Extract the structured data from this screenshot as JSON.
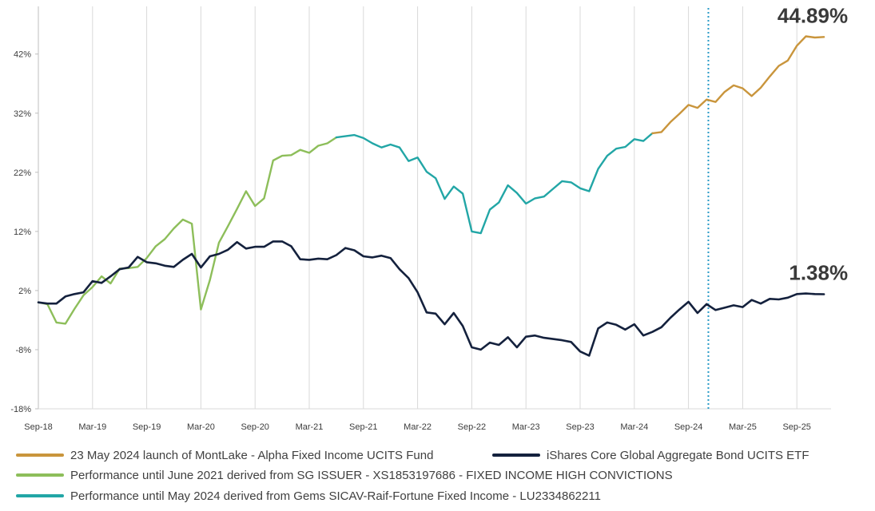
{
  "chart_data": {
    "type": "line",
    "title": "",
    "xlabel": "",
    "ylabel": "",
    "ylim": [
      -18,
      50
    ],
    "yticks": [
      -18,
      -8,
      2,
      12,
      22,
      32,
      42
    ],
    "ytick_labels": [
      "-18%",
      "-8%",
      "2%",
      "12%",
      "22%",
      "32%",
      "42%"
    ],
    "x_tick_labels": [
      "Sep-18",
      "Mar-19",
      "Sep-19",
      "Mar-20",
      "Sep-20",
      "Mar-21",
      "Sep-21",
      "Mar-22",
      "Sep-22",
      "Mar-23",
      "Sep-23",
      "Mar-24",
      "Sep-24",
      "Mar-25",
      "Sep-25"
    ],
    "x_tick_months": [
      0,
      6,
      12,
      18,
      24,
      30,
      36,
      42,
      48,
      54,
      60,
      66,
      72,
      78,
      84
    ],
    "x_range_months": [
      0,
      90
    ],
    "x_origin_label": "Sep-18",
    "grid": "vertical",
    "legend_position": "bottom",
    "vline": {
      "month": 74.2,
      "label": "",
      "color": "#2a9bc7",
      "style": "dotted"
    },
    "series": [
      {
        "name": "Performance until June 2021 derived from SG ISSUER - XS1853197686 - FIXED INCOME HIGH CONVICTIONS",
        "color": "#8dbe5a",
        "points": [
          [
            0,
            0
          ],
          [
            1,
            -0.3
          ],
          [
            2,
            -3.4
          ],
          [
            3,
            -3.6
          ],
          [
            4,
            -1.1
          ],
          [
            5,
            1.2
          ],
          [
            6,
            2.6
          ],
          [
            7,
            4.4
          ],
          [
            8,
            3.2
          ],
          [
            9,
            5.7
          ],
          [
            10,
            5.8
          ],
          [
            11,
            6
          ],
          [
            12,
            7.5
          ],
          [
            13,
            9.5
          ],
          [
            14,
            10.7
          ],
          [
            15,
            12.5
          ],
          [
            16,
            14
          ],
          [
            17,
            13.3
          ],
          [
            18,
            -1.2
          ],
          [
            19,
            3.8
          ],
          [
            20,
            10.1
          ],
          [
            21,
            12.9
          ],
          [
            22,
            15.8
          ],
          [
            23,
            18.8
          ],
          [
            24,
            16.3
          ],
          [
            25,
            17.6
          ],
          [
            26,
            24
          ],
          [
            27,
            24.8
          ],
          [
            28,
            24.9
          ],
          [
            29,
            25.8
          ],
          [
            30,
            25.3
          ],
          [
            31,
            26.5
          ],
          [
            32,
            26.9
          ],
          [
            33,
            27.9
          ]
        ]
      },
      {
        "name": "Performance until May 2024 derived from Gems SICAV-Raif-Fortune Fixed Income - LU2334862211",
        "color": "#22a6a6",
        "points": [
          [
            33,
            27.9
          ],
          [
            34,
            28.1
          ],
          [
            35,
            28.3
          ],
          [
            36,
            27.8
          ],
          [
            37,
            26.9
          ],
          [
            38,
            26.2
          ],
          [
            39,
            26.7
          ],
          [
            40,
            26.2
          ],
          [
            41,
            23.9
          ],
          [
            42,
            24.5
          ],
          [
            43,
            22.1
          ],
          [
            44,
            21
          ],
          [
            45,
            17.5
          ],
          [
            46,
            19.6
          ],
          [
            47,
            18.4
          ],
          [
            48,
            12
          ],
          [
            49,
            11.7
          ],
          [
            50,
            15.7
          ],
          [
            51,
            16.9
          ],
          [
            52,
            19.8
          ],
          [
            53,
            18.5
          ],
          [
            54,
            16.7
          ],
          [
            55,
            17.6
          ],
          [
            56,
            17.9
          ],
          [
            57,
            19.2
          ],
          [
            58,
            20.5
          ],
          [
            59,
            20.3
          ],
          [
            60,
            19.3
          ],
          [
            61,
            18.8
          ],
          [
            62,
            22.6
          ],
          [
            63,
            24.8
          ],
          [
            64,
            26
          ],
          [
            65,
            26.3
          ],
          [
            66,
            27.6
          ],
          [
            67,
            27.3
          ],
          [
            68,
            28.6
          ]
        ]
      },
      {
        "name": "23 May 2024 launch of MontLake - Alpha Fixed Income UCITS Fund",
        "color": "#c9953c",
        "points": [
          [
            68,
            28.6
          ],
          [
            69,
            28.8
          ],
          [
            70,
            30.5
          ],
          [
            71,
            31.9
          ],
          [
            72,
            33.4
          ],
          [
            73,
            32.9
          ],
          [
            74,
            34.3
          ],
          [
            75,
            33.9
          ],
          [
            76,
            35.6
          ],
          [
            77,
            36.7
          ],
          [
            78,
            36.2
          ],
          [
            79,
            34.9
          ],
          [
            80,
            36.3
          ],
          [
            81,
            38.2
          ],
          [
            82,
            40
          ],
          [
            83,
            40.9
          ],
          [
            84,
            43.4
          ],
          [
            85,
            45
          ],
          [
            86,
            44.8
          ],
          [
            87,
            44.89
          ]
        ]
      },
      {
        "name": "iShares Core Global Aggregate Bond UCITS ETF",
        "color": "#14213d",
        "points": [
          [
            0,
            0
          ],
          [
            1,
            -0.2
          ],
          [
            2,
            -0.2
          ],
          [
            3,
            1
          ],
          [
            4,
            1.4
          ],
          [
            5,
            1.7
          ],
          [
            6,
            3.6
          ],
          [
            7,
            3.3
          ],
          [
            8,
            4.4
          ],
          [
            9,
            5.6
          ],
          [
            10,
            5.9
          ],
          [
            11,
            7.7
          ],
          [
            12,
            6.8
          ],
          [
            13,
            6.6
          ],
          [
            14,
            6.2
          ],
          [
            15,
            6
          ],
          [
            16,
            7.2
          ],
          [
            17,
            8.2
          ],
          [
            18,
            5.9
          ],
          [
            19,
            7.8
          ],
          [
            20,
            8.2
          ],
          [
            21,
            8.9
          ],
          [
            22,
            10.2
          ],
          [
            23,
            9.1
          ],
          [
            24,
            9.4
          ],
          [
            25,
            9.4
          ],
          [
            26,
            10.3
          ],
          [
            27,
            10.3
          ],
          [
            28,
            9.5
          ],
          [
            29,
            7.3
          ],
          [
            30,
            7.2
          ],
          [
            31,
            7.4
          ],
          [
            32,
            7.3
          ],
          [
            33,
            8
          ],
          [
            34,
            9.2
          ],
          [
            35,
            8.8
          ],
          [
            36,
            7.8
          ],
          [
            37,
            7.6
          ],
          [
            38,
            7.9
          ],
          [
            39,
            7.5
          ],
          [
            40,
            5.6
          ],
          [
            41,
            4.1
          ],
          [
            42,
            1.7
          ],
          [
            43,
            -1.7
          ],
          [
            44,
            -1.9
          ],
          [
            45,
            -3.7
          ],
          [
            46,
            -1.8
          ],
          [
            47,
            -4
          ],
          [
            48,
            -7.6
          ],
          [
            49,
            -8
          ],
          [
            50,
            -6.8
          ],
          [
            51,
            -7.2
          ],
          [
            52,
            -5.9
          ],
          [
            53,
            -7.6
          ],
          [
            54,
            -5.8
          ],
          [
            55,
            -5.6
          ],
          [
            56,
            -6
          ],
          [
            57,
            -6.2
          ],
          [
            58,
            -6.4
          ],
          [
            59,
            -6.7
          ],
          [
            60,
            -8.3
          ],
          [
            61,
            -9
          ],
          [
            62,
            -4.4
          ],
          [
            63,
            -3.4
          ],
          [
            64,
            -3.8
          ],
          [
            65,
            -4.6
          ],
          [
            66,
            -3.7
          ],
          [
            67,
            -5.6
          ],
          [
            68,
            -5
          ],
          [
            69,
            -4.2
          ],
          [
            70,
            -2.6
          ],
          [
            71,
            -1.2
          ],
          [
            72,
            0.1
          ],
          [
            73,
            -1.8
          ],
          [
            74,
            -0.3
          ],
          [
            75,
            -1.3
          ],
          [
            76,
            -0.9
          ],
          [
            77,
            -0.5
          ],
          [
            78,
            -0.8
          ],
          [
            79,
            0.4
          ],
          [
            80,
            -0.2
          ],
          [
            81,
            0.6
          ],
          [
            82,
            0.5
          ],
          [
            83,
            0.8
          ],
          [
            84,
            1.4
          ],
          [
            85,
            1.5
          ],
          [
            86,
            1.4
          ],
          [
            87,
            1.38
          ]
        ]
      }
    ],
    "end_labels": [
      {
        "text": "44.89%",
        "series": 2
      },
      {
        "text": "1.38%",
        "series": 3
      }
    ],
    "legend": [
      {
        "name": "23 May 2024 launch of MontLake - Alpha Fixed Income UCITS Fund",
        "color": "#c9953c"
      },
      {
        "name": "iShares Core Global Aggregate Bond UCITS ETF",
        "color": "#14213d"
      },
      {
        "name": "Performance until June 2021 derived from SG ISSUER - XS1853197686 - FIXED INCOME HIGH CONVICTIONS",
        "color": "#8dbe5a"
      },
      {
        "name": "Performance until May 2024 derived from Gems SICAV-Raif-Fortune Fixed Income - LU2334862211",
        "color": "#22a6a6"
      }
    ]
  }
}
